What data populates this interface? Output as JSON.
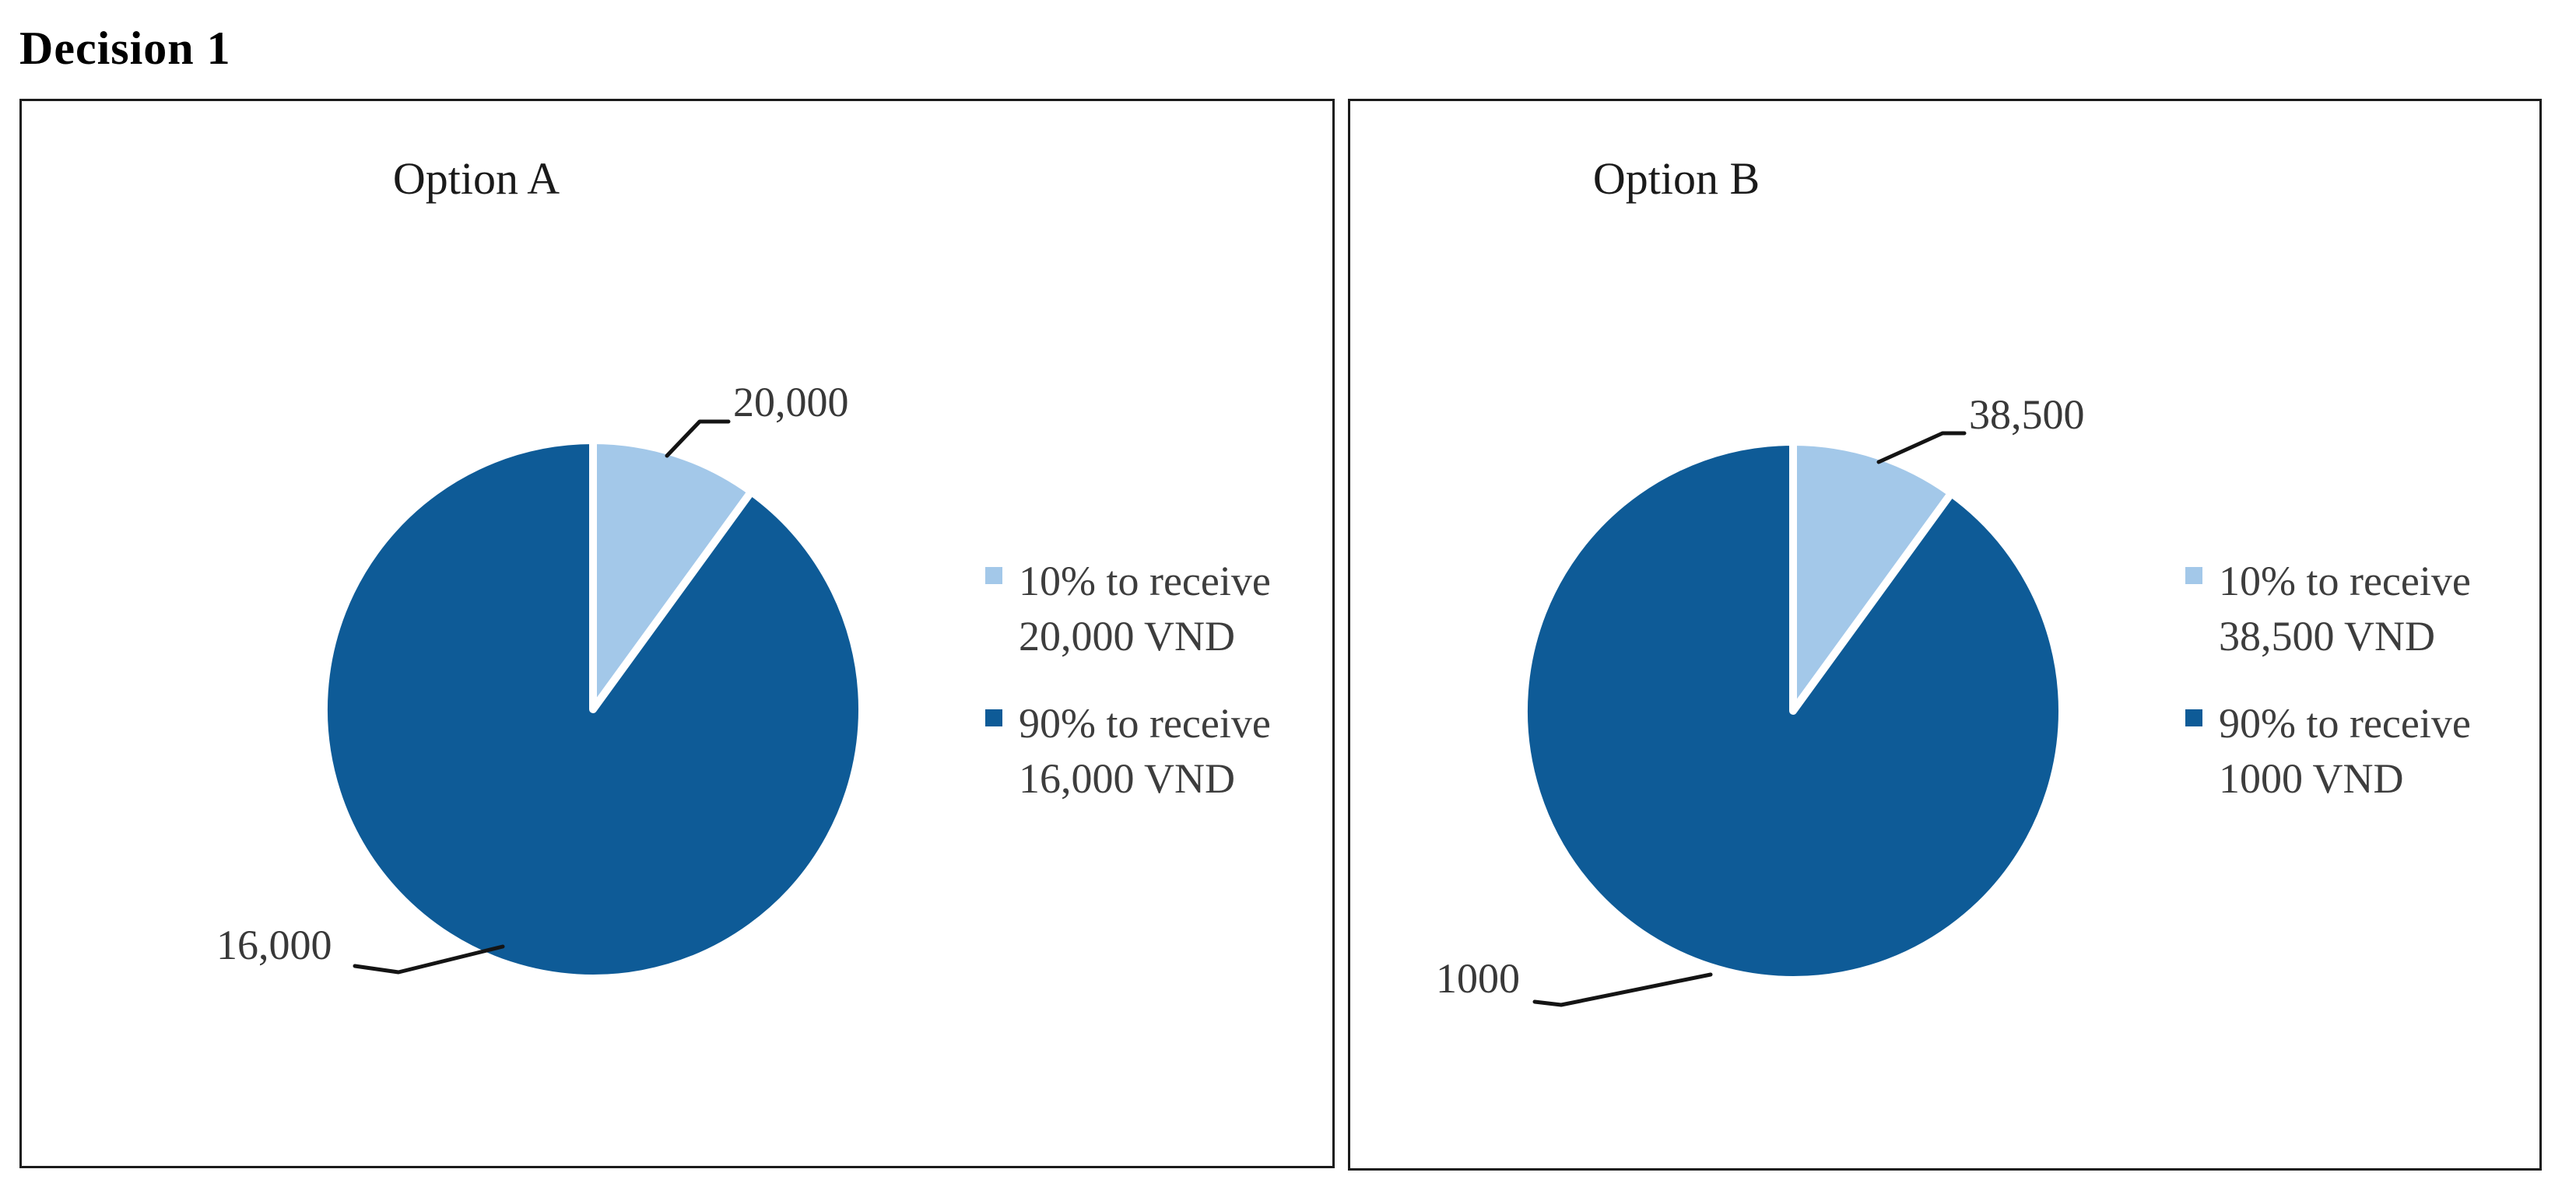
{
  "page": {
    "title": "Decision 1"
  },
  "panels": [
    {
      "title": "Option A",
      "legend": [
        {
          "color": "#a3c8e9",
          "line1": "10% to receive",
          "line2": "20,000 VND"
        },
        {
          "color": "#0e5b97",
          "line1": "90% to receive",
          "line2": "16,000 VND"
        }
      ],
      "callouts": {
        "small_slice": "20,000",
        "large_slice": "16,000"
      }
    },
    {
      "title": "Option B",
      "legend": [
        {
          "color": "#a3c8e9",
          "line1": "10% to receive",
          "line2": "38,500 VND"
        },
        {
          "color": "#0e5b97",
          "line1": "90% to receive",
          "line2": "1000 VND"
        }
      ],
      "callouts": {
        "small_slice": "38,500",
        "large_slice": "1000"
      }
    }
  ],
  "colors": {
    "slice_small": "#a3c8e9",
    "slice_large": "#0e5b97",
    "slice_gap": "#ffffff",
    "label_text": "#383838",
    "leader_line": "#141414",
    "panel_border": "#1b1b1b"
  },
  "chart_data": [
    {
      "type": "pie",
      "title": "Option A",
      "labels": [
        "10% to receive 20,000 VND",
        "90% to receive 16,000 VND"
      ],
      "values": [
        10,
        90
      ],
      "unit": "percent",
      "colors": [
        "#a3c8e9",
        "#0e5b97"
      ],
      "rotation_deg": 0,
      "direction": "clockwise",
      "data_labels": [
        "20,000",
        "16,000"
      ],
      "legend_position": "right"
    },
    {
      "type": "pie",
      "title": "Option B",
      "labels": [
        "10% to receive 38,500 VND",
        "90% to receive 1000 VND"
      ],
      "values": [
        10,
        90
      ],
      "unit": "percent",
      "colors": [
        "#a3c8e9",
        "#0e5b97"
      ],
      "rotation_deg": 0,
      "direction": "clockwise",
      "data_labels": [
        "38,500",
        "1000"
      ],
      "legend_position": "right"
    }
  ]
}
